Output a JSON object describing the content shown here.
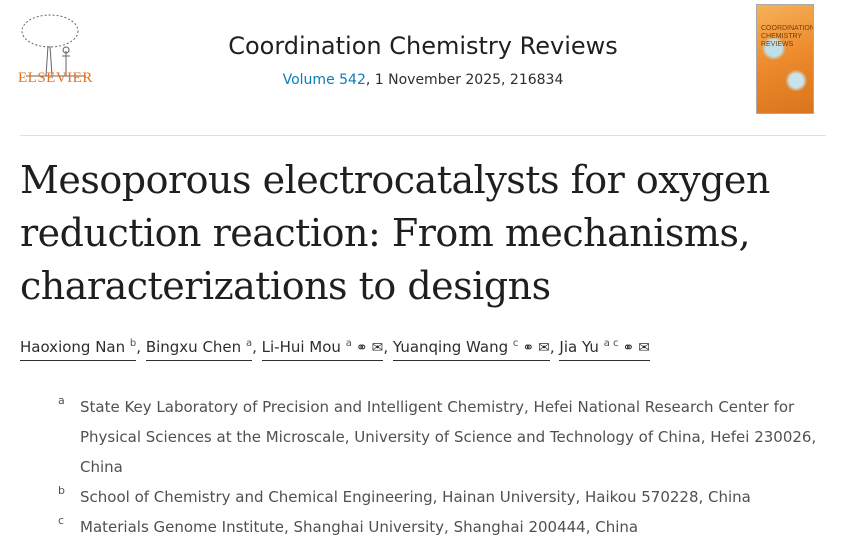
{
  "publisher": {
    "name": "ELSEVIER"
  },
  "journal": {
    "title": "Coordination Chemistry Reviews",
    "volume_link": "Volume 542",
    "volume_rest": ", 1 November 2025, 216834",
    "cover_text": "COORDINATION CHEMISTRY REVIEWS"
  },
  "article": {
    "title": "Mesoporous electrocatalysts for oxygen reduction reaction: From mechanisms, characterizations to designs"
  },
  "authors": [
    {
      "name": "Haoxiong Nan",
      "sup": "b"
    },
    {
      "name": "Bingxu Chen",
      "sup": "a"
    },
    {
      "name": "Li-Hui Mou",
      "sup": "a",
      "icons": [
        "person-icon",
        "envelope-icon"
      ]
    },
    {
      "name": "Yuanqing Wang",
      "sup": "c",
      "icons": [
        "person-icon",
        "envelope-icon"
      ]
    },
    {
      "name": "Jia Yu",
      "sup": "a c",
      "icons": [
        "person-icon",
        "envelope-icon"
      ]
    }
  ],
  "affiliations": [
    {
      "label": "a",
      "text": "State Key Laboratory of Precision and Intelligent Chemistry, Hefei National Research Center for Physical Sciences at the Microscale, University of Science and Technology of China, Hefei 230026, China"
    },
    {
      "label": "b",
      "text": "School of Chemistry and Chemical Engineering, Hainan University, Haikou 570228, China"
    },
    {
      "label": "c",
      "text": "Materials Genome Institute, Shanghai University, Shanghai 200444, China"
    }
  ],
  "colors": {
    "link": "#0c7dbb",
    "publisher": "#e9711c"
  }
}
